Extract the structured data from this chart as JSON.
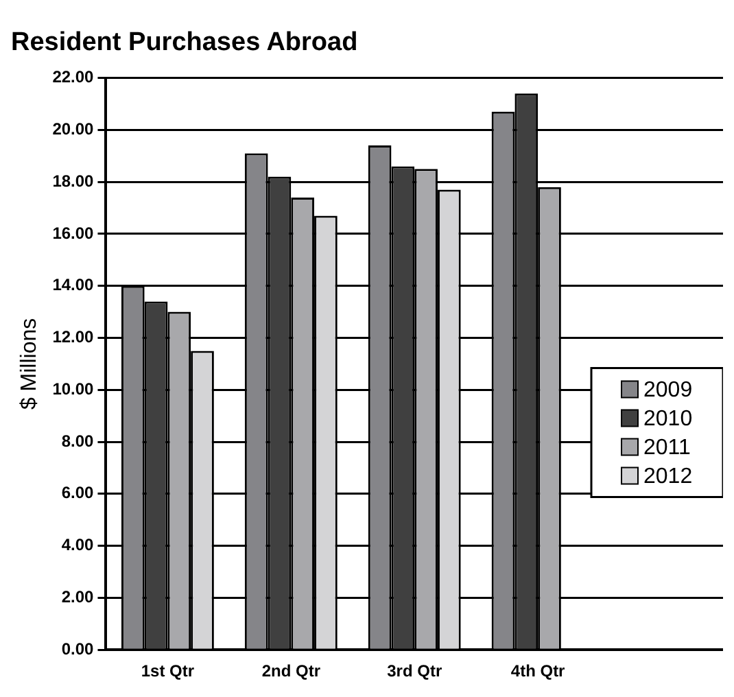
{
  "chart_data": {
    "type": "bar",
    "title": "Resident Purchases Abroad",
    "ylabel": "$ Millions",
    "categories": [
      "1st Qtr",
      "2nd Qtr",
      "3rd Qtr",
      "4th Qtr",
      null
    ],
    "series": [
      {
        "name": "2009",
        "color": "#858589",
        "values": [
          14.0,
          19.1,
          19.4,
          20.7,
          null
        ]
      },
      {
        "name": "2010",
        "color": "#404040",
        "values": [
          13.4,
          18.2,
          18.6,
          21.4,
          null
        ]
      },
      {
        "name": "2011",
        "color": "#a8a8ab",
        "values": [
          13.0,
          17.4,
          18.5,
          17.8,
          null
        ]
      },
      {
        "name": "2012",
        "color": "#d4d4d6",
        "values": [
          11.5,
          16.7,
          17.7,
          null,
          null
        ]
      }
    ],
    "ylim": [
      0,
      22
    ],
    "yticks": [
      {
        "value": 0,
        "label": "0.00"
      },
      {
        "value": 2,
        "label": "2.00"
      },
      {
        "value": 4,
        "label": "4.00"
      },
      {
        "value": 6,
        "label": "6.00"
      },
      {
        "value": 8,
        "label": "8.00"
      },
      {
        "value": 10,
        "label": "10.00"
      },
      {
        "value": 12,
        "label": "12.00"
      },
      {
        "value": 14,
        "label": "14.00"
      },
      {
        "value": 16,
        "label": "16.00"
      },
      {
        "value": 18,
        "label": "18.00"
      },
      {
        "value": 20,
        "label": "20.00"
      },
      {
        "value": 22,
        "label": "22.00"
      }
    ],
    "grid": "y",
    "legend": "right"
  }
}
